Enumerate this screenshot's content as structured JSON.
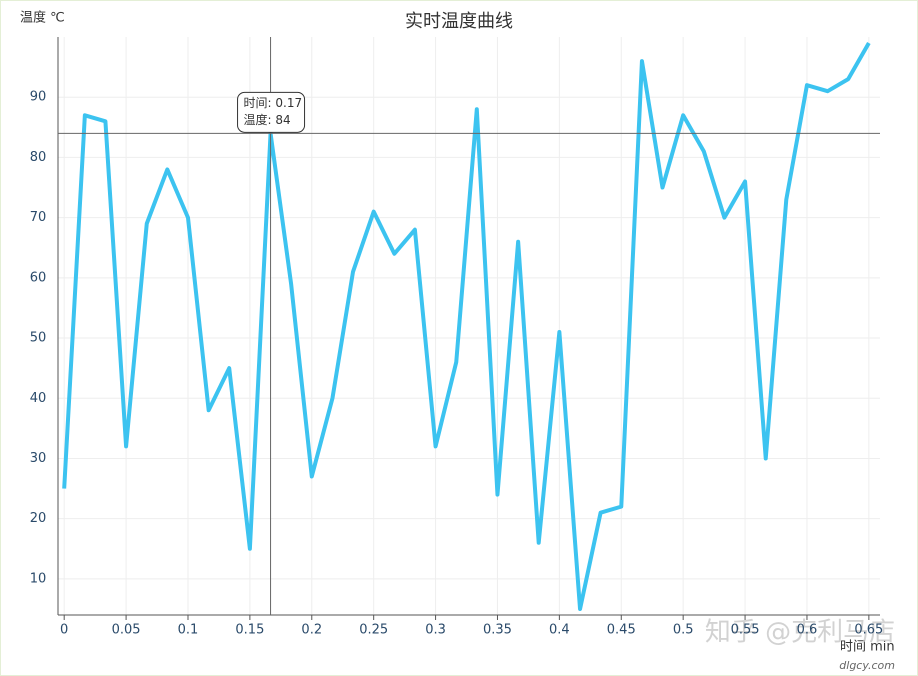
{
  "chart_data": {
    "type": "line",
    "title": "实时温度曲线",
    "y_label": "温度 ℃",
    "x_label": "时间 min",
    "x": [
      0,
      0.0167,
      0.0333,
      0.05,
      0.0667,
      0.0833,
      0.1,
      0.1167,
      0.1333,
      0.15,
      0.1667,
      0.1833,
      0.2,
      0.2167,
      0.2333,
      0.25,
      0.2667,
      0.2833,
      0.3,
      0.3167,
      0.3333,
      0.35,
      0.3667,
      0.3833,
      0.4,
      0.4167,
      0.4333,
      0.45,
      0.4667,
      0.4833,
      0.5,
      0.5167,
      0.5333,
      0.55,
      0.5667,
      0.5833,
      0.6,
      0.6167,
      0.6333,
      0.65
    ],
    "series": [
      {
        "name": "温度",
        "color": "#3cc3f0",
        "values": [
          25,
          87,
          86,
          32,
          69,
          78,
          70,
          38,
          45,
          15,
          84,
          59,
          27,
          40,
          61,
          71,
          64,
          68,
          32,
          46,
          88,
          24,
          66,
          16,
          51,
          5,
          21,
          22,
          96,
          75,
          87,
          81,
          70,
          76,
          30,
          73,
          92,
          91,
          93,
          99
        ]
      }
    ],
    "xlim": [
      -0.005,
      0.659
    ],
    "ylim": [
      4,
      100
    ],
    "xticks": [
      0,
      0.05,
      0.1,
      0.15,
      0.2,
      0.25,
      0.3,
      0.35,
      0.4,
      0.45,
      0.5,
      0.55,
      0.6,
      0.65
    ],
    "yticks": [
      10,
      20,
      30,
      40,
      50,
      60,
      70,
      80,
      90
    ],
    "grid": true,
    "tooltip": {
      "index": 10,
      "lines": [
        "时间: 0.17",
        "温度: 84"
      ]
    },
    "watermark": "知乎 @克利马店",
    "site": "dlgcy.com"
  }
}
